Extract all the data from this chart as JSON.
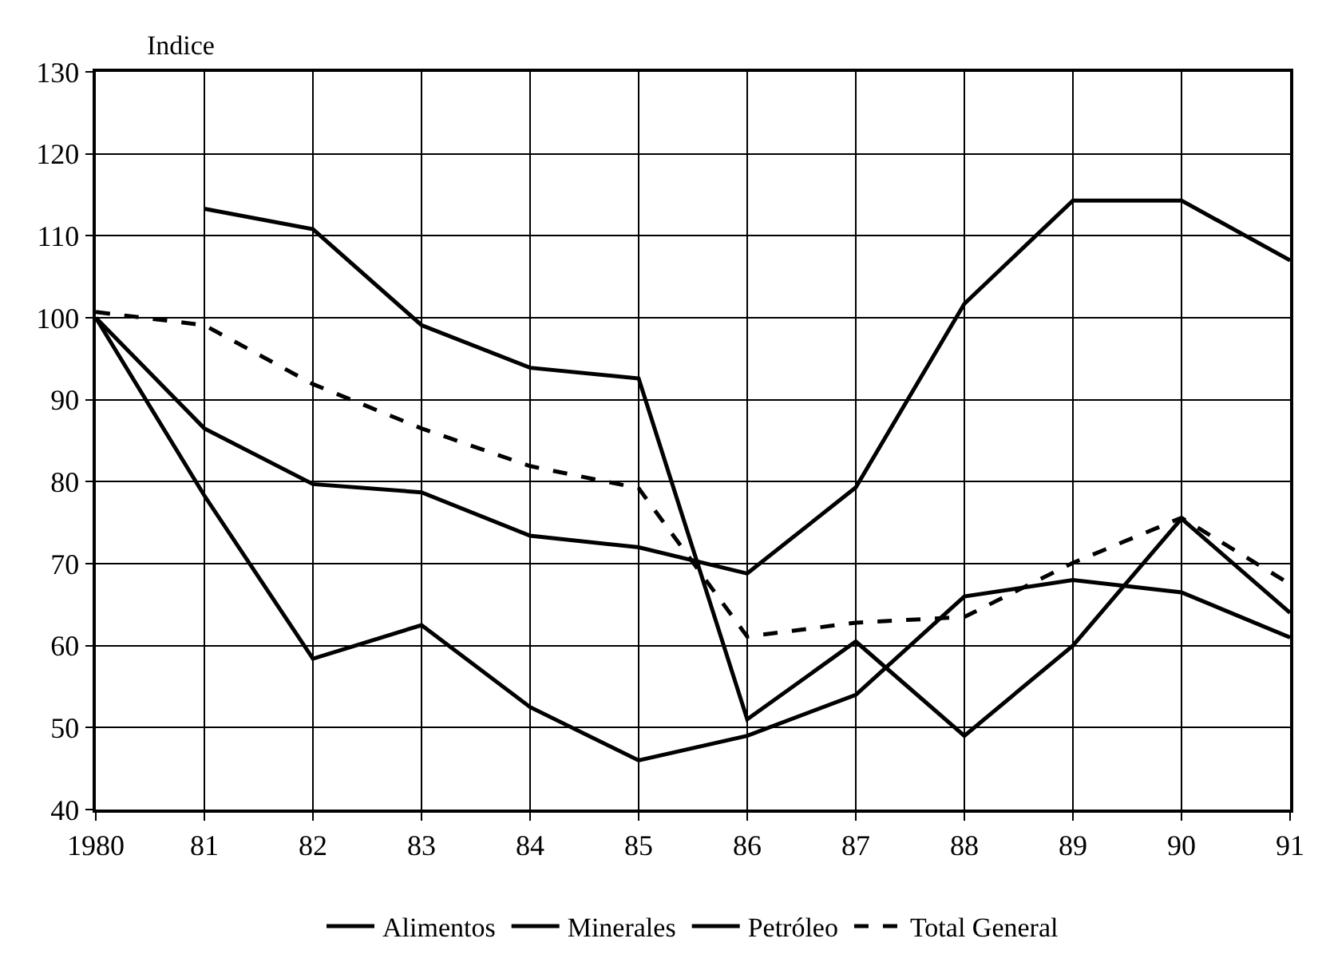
{
  "chart_data": {
    "type": "line",
    "ylabel": "Indice",
    "x": [
      1980,
      1981,
      1982,
      1983,
      1984,
      1985,
      1986,
      1987,
      1988,
      1989,
      1990,
      1991
    ],
    "series": [
      {
        "name": "Alimentos",
        "color": "#000000",
        "values": [
          100,
          78.3,
          58.4,
          62.5,
          52.5,
          46,
          49,
          54,
          66,
          68,
          66.5,
          61
        ]
      },
      {
        "name": "Minerales",
        "color": "#000000",
        "values": [
          100,
          86.5,
          79.7,
          78.7,
          73.4,
          72,
          68.8,
          79.3,
          101.7,
          114.3,
          114.3,
          107
        ]
      },
      {
        "name": "Petróleo",
        "color": "#000000",
        "values": [
          null,
          113.3,
          110.8,
          99.1,
          93.9,
          92.6,
          51,
          60.5,
          49,
          60,
          75.5,
          64
        ]
      },
      {
        "name": "Total General",
        "color": "#000000",
        "line_style": "dashed",
        "values": [
          100.7,
          99.1,
          91.9,
          86.5,
          81.9,
          79.2,
          61.1,
          62.8,
          63.5,
          70.1,
          75.6,
          67.5
        ]
      }
    ],
    "xlim": [
      1980,
      1991
    ],
    "ylim": [
      40,
      130
    ],
    "xticks": [
      1980,
      {
        "value": 1981,
        "label": "81"
      },
      {
        "value": 1982,
        "label": "82"
      },
      {
        "value": 1983,
        "label": "83"
      },
      {
        "value": 1984,
        "label": "84"
      },
      {
        "value": 1985,
        "label": "85"
      },
      {
        "value": 1986,
        "label": "86"
      },
      {
        "value": 1987,
        "label": "87"
      },
      {
        "value": 1988,
        "label": "88"
      },
      {
        "value": 1989,
        "label": "89"
      },
      {
        "value": 1990,
        "label": "90"
      },
      {
        "value": 1991,
        "label": "91"
      }
    ],
    "yticks": [
      40,
      50,
      60,
      70,
      80,
      90,
      100,
      110,
      120,
      130
    ],
    "grid": true,
    "legend": "bottom",
    "marker": "none",
    "line_style": "solid"
  }
}
